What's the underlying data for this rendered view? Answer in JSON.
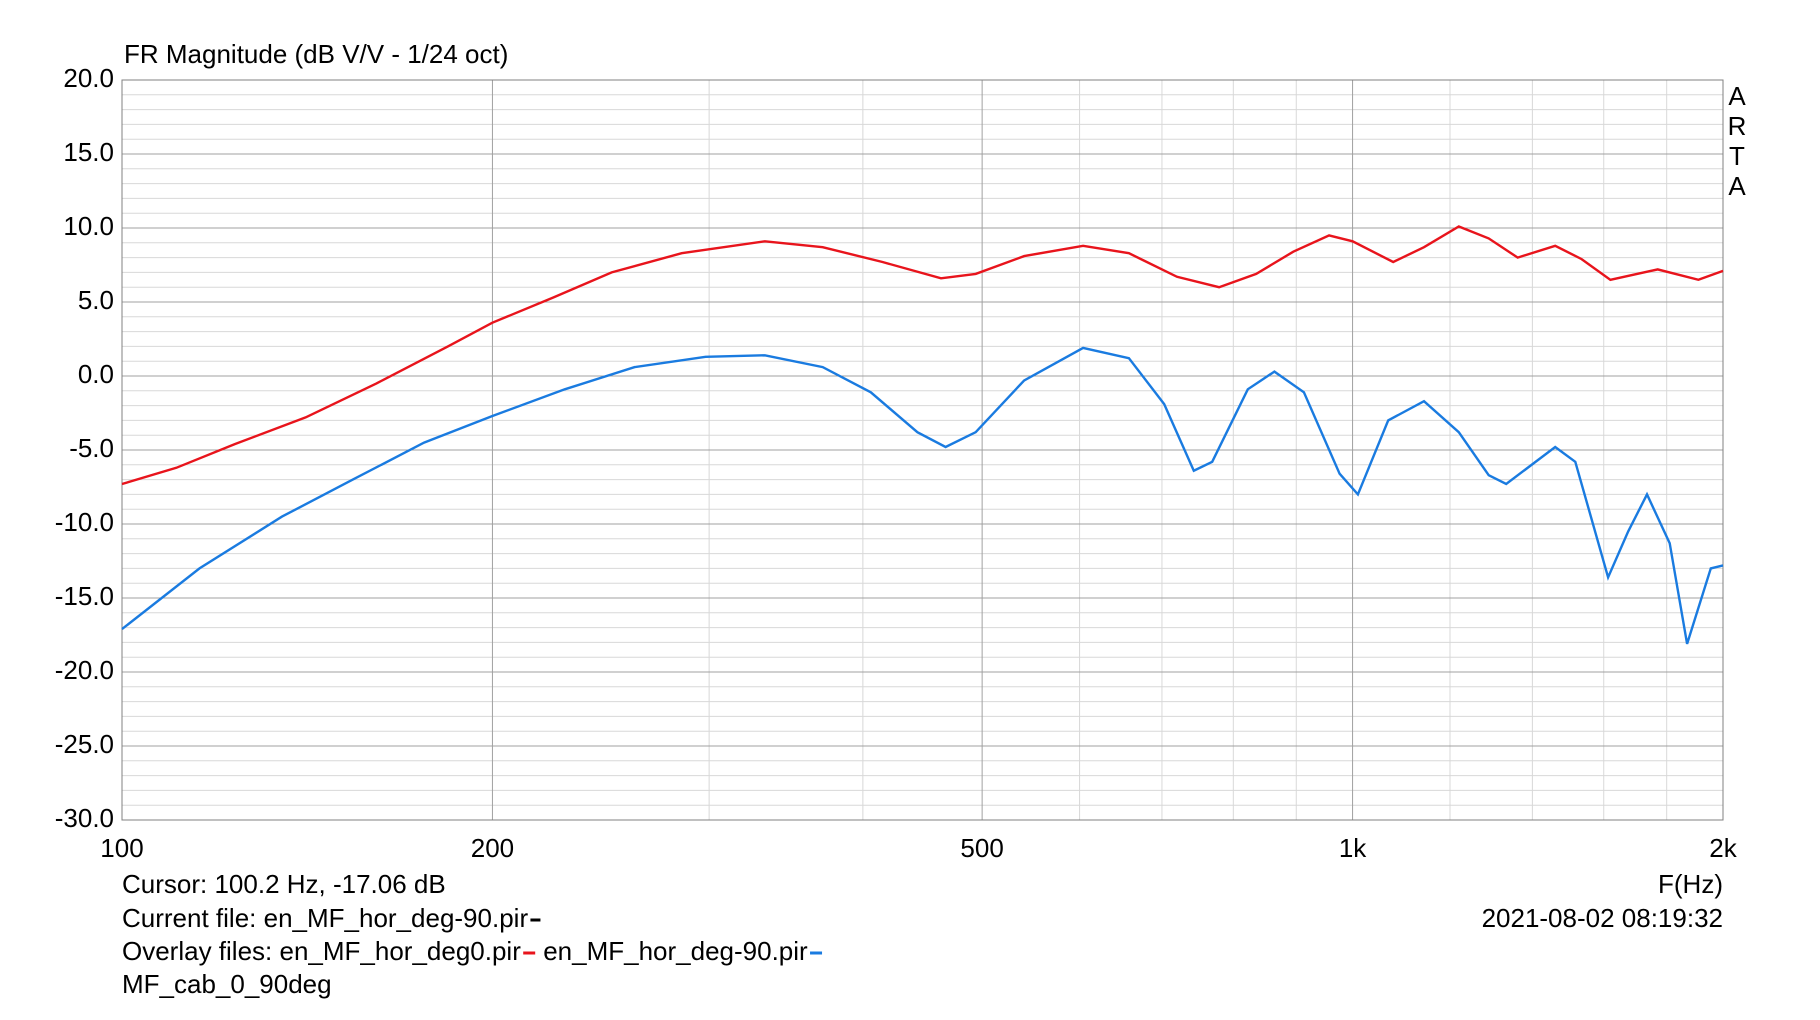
{
  "chart_data": {
    "type": "line",
    "title": "FR Magnitude (dB V/V - 1/24 oct)",
    "side_label": [
      "A",
      "R",
      "T",
      "A"
    ],
    "x_label": "F(Hz)",
    "log_x": true,
    "grid": true,
    "xlim": [
      100,
      2000
    ],
    "xticks": [
      100,
      200,
      500,
      {
        "value": 1000,
        "label": "1k"
      },
      {
        "value": 2000,
        "label": "2k"
      }
    ],
    "x_minor_ticks": [
      300,
      400,
      600,
      700,
      800,
      900,
      1200,
      1400,
      1600,
      1800
    ],
    "ylim": [
      -30,
      20
    ],
    "yticks": [
      {
        "value": -30,
        "label": "-30.0"
      },
      {
        "value": -25,
        "label": "-25.0"
      },
      {
        "value": -20,
        "label": "-20.0"
      },
      {
        "value": -15,
        "label": "-15.0"
      },
      {
        "value": -10,
        "label": "-10.0"
      },
      {
        "value": -5,
        "label": "-5.0"
      },
      {
        "value": 0,
        "label": "0.0"
      },
      {
        "value": 5,
        "label": "5.0"
      },
      {
        "value": 10,
        "label": "10.0"
      },
      {
        "value": 15,
        "label": "15.0"
      },
      {
        "value": 20,
        "label": "20.0"
      }
    ],
    "y_minor_step": 1,
    "cursor": "Cursor: 100.2 Hz, -17.06 dB",
    "current_file_label": "Current file: en_MF_hor_deg-90.pir",
    "timestamp": "2021-08-02  08:19:32",
    "overlay_label": "Overlay files: en_MF_hor_deg0.pir",
    "project": "MF_cab_0_90deg",
    "series": [
      {
        "name": "en_MF_hor_deg0.pir",
        "color": "#e8141c",
        "legend_name": false,
        "x": [
          100,
          110.7,
          123.5,
          141,
          161,
          184,
          200,
          224,
          250,
          285,
          333,
          371,
          415,
          463,
          494,
          541,
          604,
          658,
          720,
          779,
          835,
          895,
          957,
          1000,
          1079,
          1143,
          1220,
          1290,
          1362,
          1461,
          1535,
          1620,
          1770,
          1910,
          2000
        ],
        "values": [
          -7.3,
          -6.2,
          -4.6,
          -2.8,
          -0.5,
          2.0,
          3.6,
          5.3,
          7.0,
          8.3,
          9.1,
          8.7,
          7.7,
          6.6,
          6.9,
          8.1,
          8.8,
          8.3,
          6.7,
          6.0,
          6.9,
          8.4,
          9.5,
          9.1,
          7.7,
          8.7,
          10.1,
          9.3,
          8.0,
          8.8,
          7.9,
          6.5,
          7.2,
          6.5,
          7.1
        ]
      },
      {
        "name": "en_MF_hor_deg-90.pir",
        "color": "#1a7be0",
        "x": [
          100,
          115.6,
          134.9,
          154,
          176,
          200,
          229,
          261,
          298,
          333,
          371,
          406,
          443,
          467,
          494,
          541,
          604,
          658,
          703,
          743,
          769,
          822,
          864,
          913,
          976,
          1010,
          1069,
          1143,
          1220,
          1290,
          1333,
          1461,
          1517,
          1613,
          1675,
          1735,
          1810,
          1870,
          1955,
          2000
        ],
        "values": [
          -17.1,
          -13.0,
          -9.5,
          -7.0,
          -4.5,
          -2.7,
          -0.9,
          0.6,
          1.3,
          1.4,
          0.6,
          -1.1,
          -3.8,
          -4.8,
          -3.8,
          -0.3,
          1.9,
          1.2,
          -1.9,
          -6.4,
          -5.8,
          -0.9,
          0.3,
          -1.1,
          -6.6,
          -8.0,
          -3.0,
          -1.7,
          -3.8,
          -6.7,
          -7.3,
          -4.8,
          -5.8,
          -13.6,
          -10.5,
          -8.0,
          -11.3,
          -18.1,
          -13.0,
          -12.8
        ]
      }
    ]
  }
}
